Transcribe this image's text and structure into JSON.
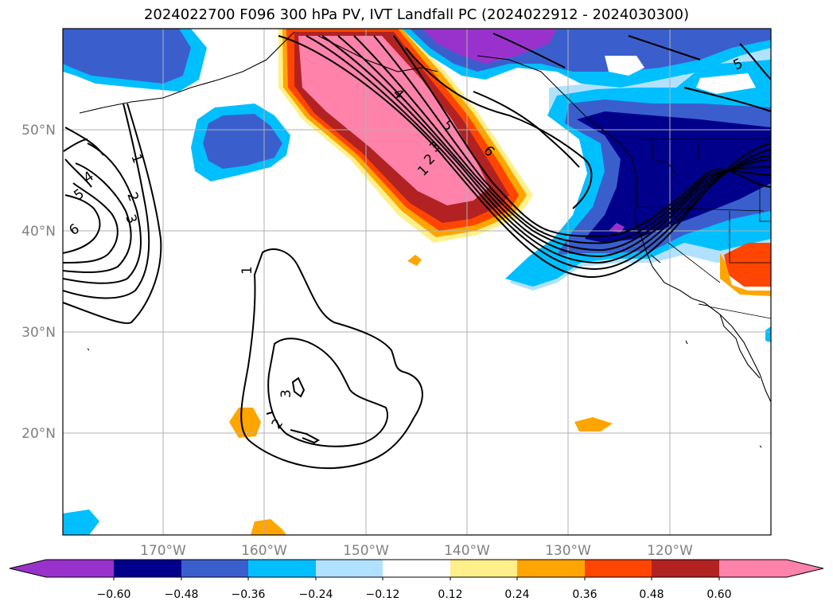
{
  "title": "2024022700 F096 300 hPa PV, IVT Landfall PC (2024022912 - 2024030300)",
  "lat_labels": [
    "50°N",
    "40°N",
    "30°N",
    "20°N"
  ],
  "lon_labels": [
    "170°W",
    "160°W",
    "150°W",
    "140°W",
    "130°W",
    "120°W"
  ],
  "colorbar": {
    "tick_labels": [
      "−0.60",
      "−0.48",
      "−0.36",
      "−0.24",
      "−0.12",
      "0.12",
      "0.24",
      "0.36",
      "0.48",
      "0.60"
    ],
    "colors": [
      "#9932cc",
      "#00008b",
      "#3a5fcd",
      "#00bfff",
      "#b0e2ff",
      "#ffffff",
      "#fff08a",
      "#ffa500",
      "#ff4500",
      "#b22222",
      "#ff82ab"
    ]
  },
  "contour_labels": [
    "1",
    "2",
    "3",
    "4",
    "5",
    "6",
    "1",
    "2",
    "3",
    "4",
    "5",
    "6",
    "1",
    "2",
    "3",
    "5"
  ]
}
